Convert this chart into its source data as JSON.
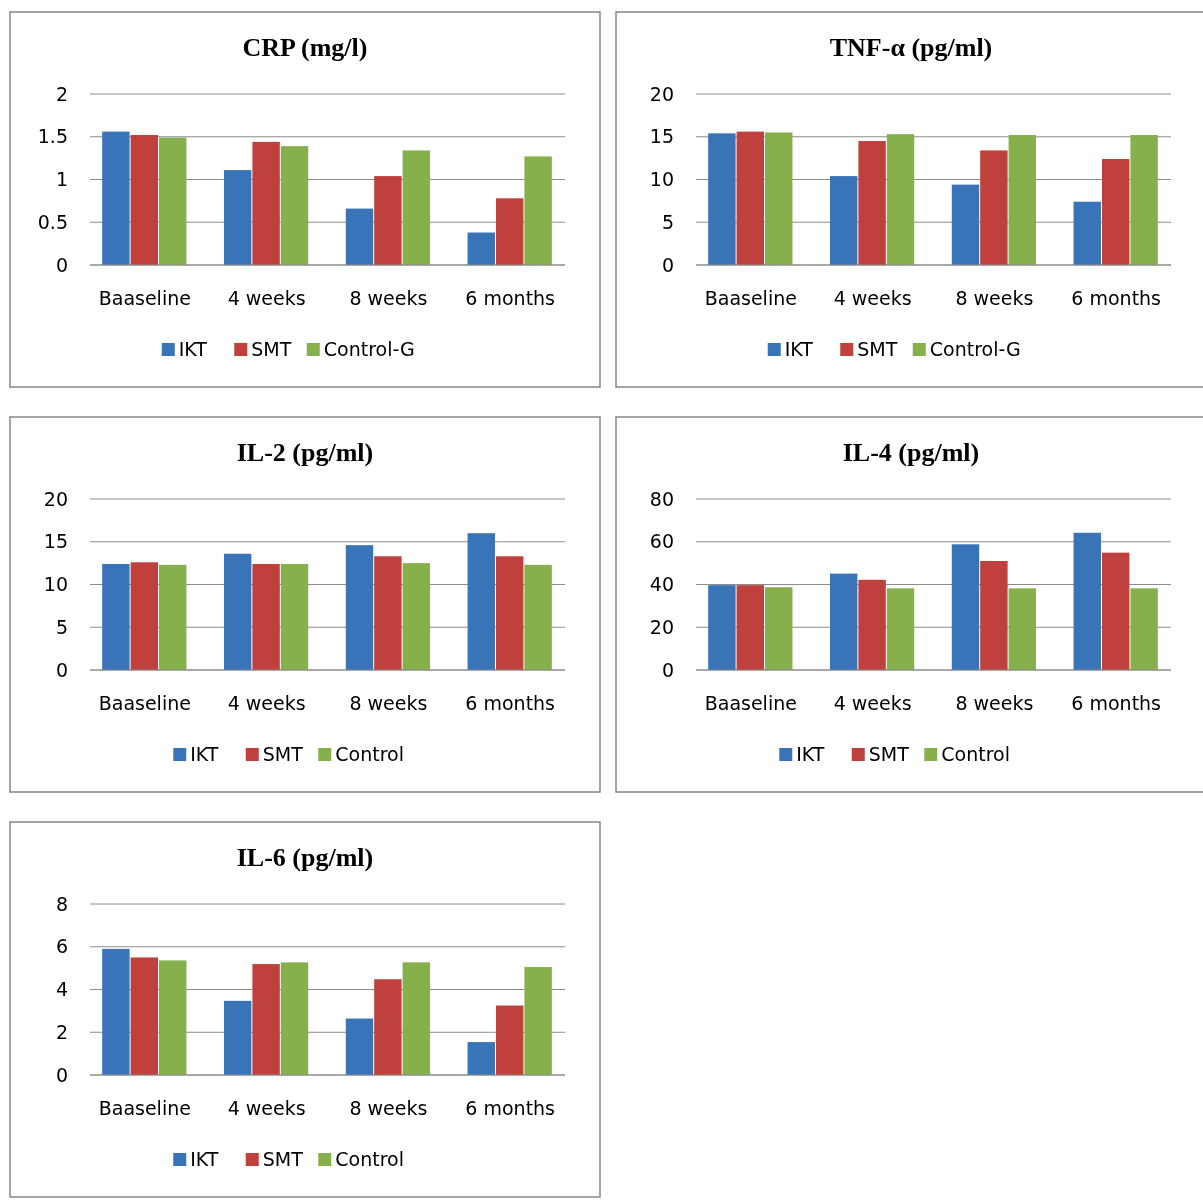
{
  "chart_data": [
    {
      "type": "bar",
      "title": "CRP (mg/l)",
      "categories": [
        "Baaseline",
        "4 weeks",
        "8 weeks",
        "6 months"
      ],
      "ylim": [
        0,
        2
      ],
      "yticks": [
        0,
        0.5,
        1,
        1.5,
        2
      ],
      "grid": "y",
      "legend": "bottom",
      "series": [
        {
          "name": "IKT",
          "color": "#3a74b8",
          "values": [
            1.56,
            1.11,
            0.66,
            0.38
          ]
        },
        {
          "name": "SMT",
          "color": "#c0403d",
          "values": [
            1.52,
            1.44,
            1.04,
            0.78
          ]
        },
        {
          "name": "Control-G",
          "color": "#85b04c",
          "values": [
            1.49,
            1.39,
            1.34,
            1.27
          ]
        }
      ]
    },
    {
      "type": "bar",
      "title": "TNF-α (pg/ml)",
      "categories": [
        "Baaseline",
        "4 weeks",
        "8 weeks",
        "6 months"
      ],
      "ylim": [
        0,
        20
      ],
      "yticks": [
        0,
        5,
        10,
        15,
        20
      ],
      "grid": "y",
      "legend": "bottom",
      "series": [
        {
          "name": "IKT",
          "color": "#3a74b8",
          "values": [
            15.4,
            10.4,
            9.4,
            7.4
          ]
        },
        {
          "name": "SMT",
          "color": "#c0403d",
          "values": [
            15.6,
            14.5,
            13.4,
            12.4
          ]
        },
        {
          "name": "Control-G",
          "color": "#85b04c",
          "values": [
            15.5,
            15.3,
            15.2,
            15.2
          ]
        }
      ]
    },
    {
      "type": "bar",
      "title": "IL-2 (pg/ml)",
      "categories": [
        "Baaseline",
        "4 weeks",
        "8 weeks",
        "6 months"
      ],
      "ylim": [
        0,
        20
      ],
      "yticks": [
        0,
        5,
        10,
        15,
        20
      ],
      "grid": "y",
      "legend": "bottom",
      "series": [
        {
          "name": "IKT",
          "color": "#3a74b8",
          "values": [
            12.4,
            13.6,
            14.6,
            16.0
          ]
        },
        {
          "name": "SMT",
          "color": "#c0403d",
          "values": [
            12.6,
            12.4,
            13.3,
            13.3
          ]
        },
        {
          "name": "Control",
          "color": "#85b04c",
          "values": [
            12.3,
            12.4,
            12.5,
            12.3
          ]
        }
      ]
    },
    {
      "type": "bar",
      "title": "IL-4 (pg/ml)",
      "categories": [
        "Baaseline",
        "4 weeks",
        "8 weeks",
        "6 months"
      ],
      "ylim": [
        0,
        80
      ],
      "yticks": [
        0,
        20,
        40,
        60,
        80
      ],
      "grid": "y",
      "legend": "bottom",
      "series": [
        {
          "name": "IKT",
          "color": "#3a74b8",
          "values": [
            39.7,
            45.1,
            58.8,
            64.2
          ]
        },
        {
          "name": "SMT",
          "color": "#c0403d",
          "values": [
            39.7,
            42.2,
            51.0,
            54.9
          ]
        },
        {
          "name": "Control",
          "color": "#85b04c",
          "values": [
            38.7,
            38.2,
            38.2,
            38.2
          ]
        }
      ]
    },
    {
      "type": "bar",
      "title": "IL-6 (pg/ml)",
      "categories": [
        "Baaseline",
        "4 weeks",
        "8 weeks",
        "6 months"
      ],
      "ylim": [
        0,
        8
      ],
      "yticks": [
        0,
        2,
        4,
        6,
        8
      ],
      "grid": "y",
      "legend": "bottom",
      "series": [
        {
          "name": "IKT",
          "color": "#3a74b8",
          "values": [
            5.9,
            3.47,
            2.64,
            1.54
          ]
        },
        {
          "name": "SMT",
          "color": "#c0403d",
          "values": [
            5.5,
            5.19,
            4.48,
            3.25
          ]
        },
        {
          "name": "Control",
          "color": "#85b04c",
          "values": [
            5.36,
            5.27,
            5.27,
            5.05
          ]
        }
      ]
    }
  ]
}
